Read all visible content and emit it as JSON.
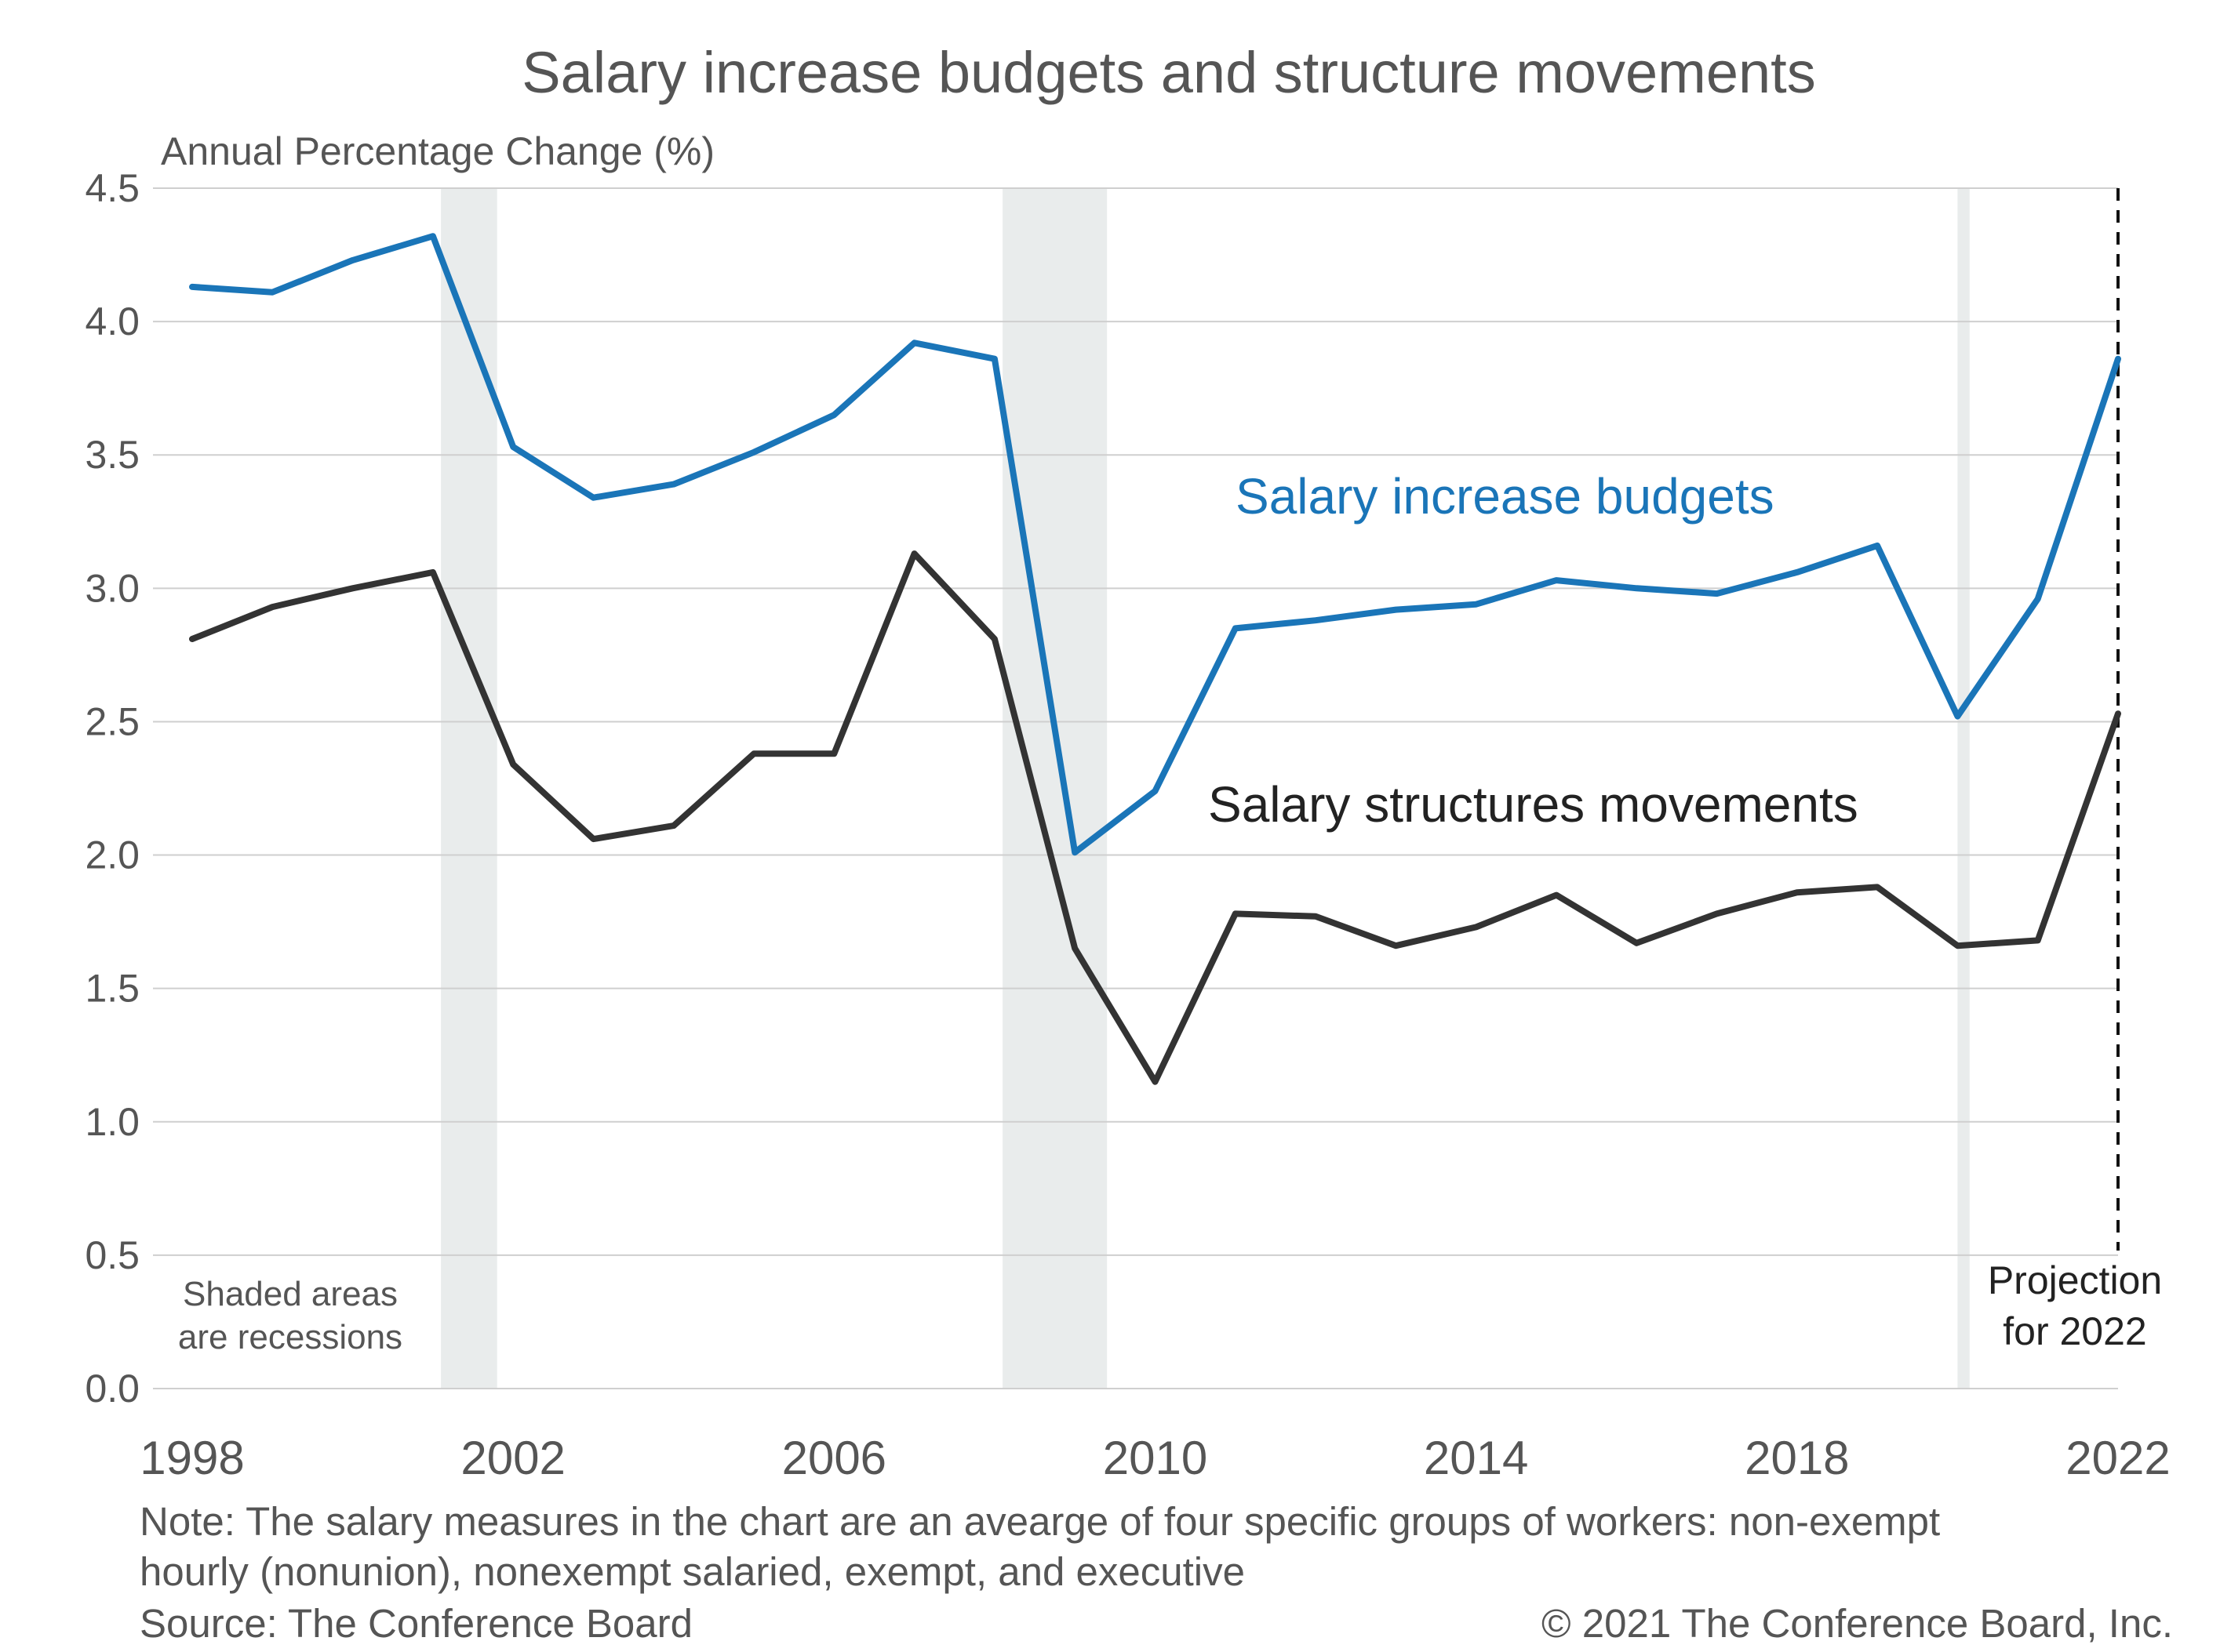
{
  "chart_data": {
    "type": "line",
    "title": "Salary increase budgets and structure movements",
    "ylabel": "Annual Percentage Change (%)",
    "ylim": [
      0,
      4.5
    ],
    "y_ticks": [
      "0.0",
      "0.5",
      "1.0",
      "1.5",
      "2.0",
      "2.5",
      "3.0",
      "3.5",
      "4.0",
      "4.5"
    ],
    "xlim": [
      1998,
      2022
    ],
    "x_ticks": [
      "1998",
      "2002",
      "2006",
      "2010",
      "2014",
      "2018",
      "2022"
    ],
    "x": [
      1998,
      1999,
      2000,
      2001,
      2002,
      2003,
      2004,
      2005,
      2006,
      2007,
      2008,
      2009,
      2010,
      2011,
      2012,
      2013,
      2014,
      2015,
      2016,
      2017,
      2018,
      2019,
      2020,
      2021,
      2022
    ],
    "series": [
      {
        "name": "Salary increase budgets",
        "color": "#1a75b8",
        "values": [
          4.13,
          4.11,
          4.23,
          4.32,
          3.53,
          3.34,
          3.39,
          3.51,
          3.65,
          3.92,
          3.86,
          2.01,
          2.24,
          2.85,
          2.88,
          2.92,
          2.94,
          3.03,
          3.0,
          2.98,
          3.06,
          3.16,
          2.52,
          2.96,
          3.86
        ]
      },
      {
        "name": "Salary structures movements",
        "color": "#333333",
        "values": [
          2.81,
          2.93,
          3.0,
          3.06,
          2.34,
          2.06,
          2.11,
          2.38,
          2.38,
          3.13,
          2.81,
          1.65,
          1.15,
          1.78,
          1.77,
          1.66,
          1.73,
          1.85,
          1.67,
          1.78,
          1.86,
          1.88,
          1.66,
          1.68,
          2.53
        ]
      }
    ],
    "recessions": [
      {
        "start": 2001.1,
        "end": 2001.8
      },
      {
        "start": 2008.1,
        "end": 2009.4
      },
      {
        "start": 2020.0,
        "end": 2020.15
      }
    ],
    "projection_year": 2022,
    "grid": true,
    "legend": "inline labels",
    "annotations": {
      "recession_note_line1": "Shaded areas",
      "recession_note_line2": "are recessions",
      "projection_line1": "Projection",
      "projection_line2": "for 2022"
    },
    "note_line1": "Note: The salary measures in the chart are an avearge of four specific groups of workers: non-exempt",
    "note_line2": "hourly (nonunion), nonexempt salaried, exempt, and executive",
    "source": "Source: The Conference Board",
    "copyright": "© 2021 The Conference Board, Inc."
  }
}
